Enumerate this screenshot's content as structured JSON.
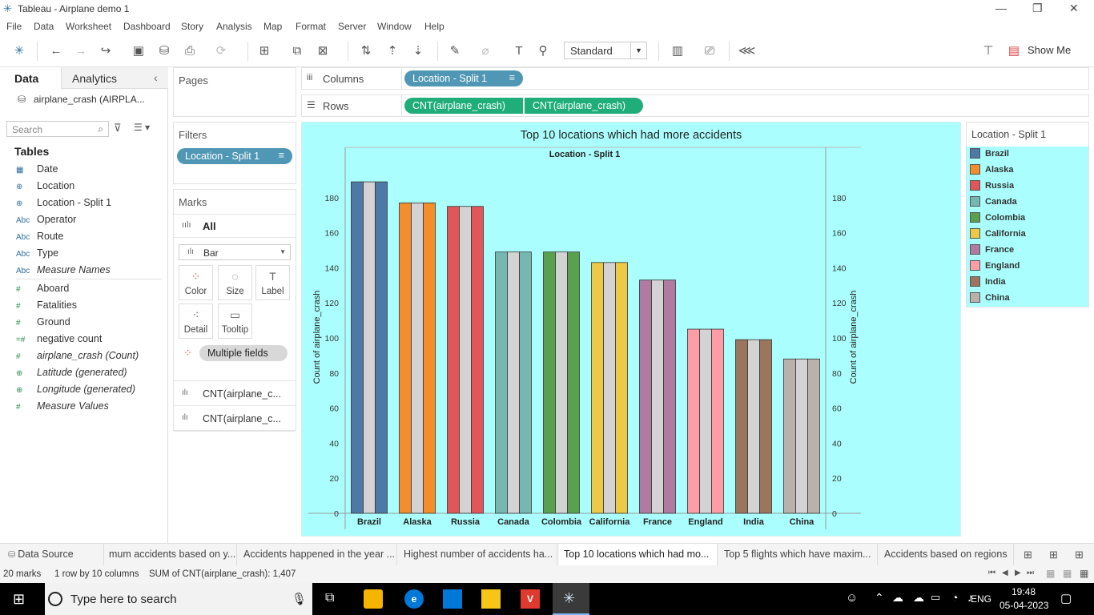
{
  "window": {
    "title": "Tableau - Airplane demo 1",
    "controls": [
      "—",
      "❐",
      "✕"
    ]
  },
  "menu": [
    "File",
    "Data",
    "Worksheet",
    "Dashboard",
    "Story",
    "Analysis",
    "Map",
    "Format",
    "Server",
    "Window",
    "Help"
  ],
  "toolbar": {
    "fit": "Standard",
    "show_me": "Show Me"
  },
  "left_pane": {
    "tab_data": "Data",
    "tab_analytics": "Analytics",
    "datasource": "airplane_crash (AIRPLA...",
    "search_placeholder": "Search",
    "tables_heading": "Tables",
    "dimensions": [
      {
        "icon": "▦",
        "name": "Date"
      },
      {
        "icon": "⊕",
        "name": "Location"
      },
      {
        "icon": "⊕",
        "name": "Location - Split 1"
      },
      {
        "icon": "Abc",
        "name": "Operator"
      },
      {
        "icon": "Abc",
        "name": "Route"
      },
      {
        "icon": "Abc",
        "name": "Type"
      },
      {
        "icon": "Abc",
        "name": "Measure Names"
      }
    ],
    "measures": [
      {
        "icon": "#",
        "name": "Aboard"
      },
      {
        "icon": "#",
        "name": "Fatalities"
      },
      {
        "icon": "#",
        "name": "Ground"
      },
      {
        "icon": "=#",
        "name": "negative count"
      },
      {
        "icon": "#",
        "name": "airplane_crash (Count)"
      },
      {
        "icon": "⊕",
        "name": "Latitude (generated)"
      },
      {
        "icon": "⊕",
        "name": "Longitude (generated)"
      },
      {
        "icon": "#",
        "name": "Measure Values"
      }
    ]
  },
  "cards": {
    "pages": "Pages",
    "filters": "Filters",
    "filter_pill": "Location - Split 1",
    "marks": "Marks",
    "marks_all": "All",
    "mark_type": "Bar",
    "buttons": [
      "Color",
      "Size",
      "Label",
      "Detail",
      "Tooltip"
    ],
    "multiple_fields": "Multiple fields",
    "measure_rows": [
      "CNT(airplane_c...",
      "CNT(airplane_c..."
    ]
  },
  "shelves": {
    "columns_label": "Columns",
    "rows_label": "Rows",
    "columns_pill": "Location - Split 1",
    "rows_pills": [
      "CNT(airplane_crash)",
      "CNT(airplane_crash)"
    ]
  },
  "chart_data": {
    "type": "bar",
    "title": "Top 10 locations which had more accidents",
    "header": "Location - Split 1",
    "categories": [
      "Brazil",
      "Alaska",
      "Russia",
      "Canada",
      "Colombia",
      "California",
      "France",
      "England",
      "India",
      "China"
    ],
    "values": [
      189,
      177,
      175,
      149,
      149,
      143,
      133,
      105,
      99,
      88
    ],
    "colors": [
      "#4e79a7",
      "#f28e2b",
      "#e15759",
      "#76b7b2",
      "#59a14f",
      "#edc948",
      "#b07aa1",
      "#ff9da7",
      "#9c755f",
      "#bab0ac"
    ],
    "secondary_color": "#d3d3d3",
    "ylabel": "Count of airplane_crash",
    "ylim": [
      0,
      200
    ],
    "yticks": [
      0,
      20,
      40,
      60,
      80,
      100,
      120,
      140,
      160,
      180
    ],
    "dual_axis": true
  },
  "legend": {
    "title": "Location - Split 1"
  },
  "sheets": [
    {
      "label": "Data Source",
      "active": false
    },
    {
      "label": "mum accidents based on y...",
      "active": false
    },
    {
      "label": "Accidents happened in the year ...",
      "active": false
    },
    {
      "label": "Highest number of accidents ha...",
      "active": false
    },
    {
      "label": "Top 10 locations which had mo...",
      "active": true
    },
    {
      "label": "Top 5 flights which have maxim...",
      "active": false
    },
    {
      "label": "Accidents based on regions",
      "active": false
    }
  ],
  "status": {
    "marks": "20 marks",
    "layout": "1 row by 10 columns",
    "sum": "SUM of CNT(airplane_crash): 1,407"
  },
  "taskbar": {
    "search_placeholder": "Type here to search",
    "lang": "ENG",
    "time": "19:48",
    "date": "05-04-2023"
  }
}
